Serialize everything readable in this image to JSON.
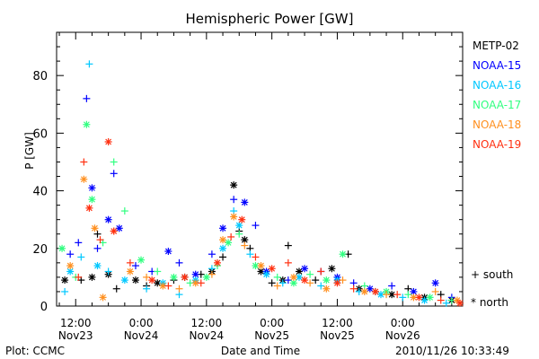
{
  "chart_data": {
    "type": "scatter",
    "title": "Hemispheric Power [GW]",
    "ylabel": "P [GW]",
    "xlabel": "Date and Time",
    "ylim": [
      0,
      95
    ],
    "xlim": [
      "2010-11-23 08:30",
      "2010-11-26 11:00"
    ],
    "yticks": [
      0,
      20,
      40,
      60,
      80
    ],
    "xticks": [
      {
        "time": "2010-11-23 12:00",
        "label": "12:00",
        "sublabel": "Nov23"
      },
      {
        "time": "2010-11-24 00:00",
        "label": "0:00",
        "sublabel": "Nov24"
      },
      {
        "time": "2010-11-24 12:00",
        "label": "12:00",
        "sublabel": "Nov24"
      },
      {
        "time": "2010-11-25 00:00",
        "label": "0:00",
        "sublabel": "Nov25"
      },
      {
        "time": "2010-11-25 12:00",
        "label": "12:00",
        "sublabel": "Nov25"
      },
      {
        "time": "2010-11-26 00:00",
        "label": "0:00",
        "sublabel": "Nov26"
      }
    ],
    "grid": false,
    "legend_position": "right",
    "symbols": {
      "south": "+",
      "north": "*"
    },
    "series": [
      {
        "name": "METP-02",
        "color": "#000000",
        "points": [
          [
            "2010-11-23 10:00",
            9,
            "north"
          ],
          [
            "2010-11-23 13:00",
            9,
            "south"
          ],
          [
            "2010-11-23 15:00",
            10,
            "north"
          ],
          [
            "2010-11-23 16:00",
            25,
            "south"
          ],
          [
            "2010-11-23 18:00",
            11,
            "north"
          ],
          [
            "2010-11-23 19:30",
            6,
            "south"
          ],
          [
            "2010-11-23 23:00",
            9,
            "north"
          ],
          [
            "2010-11-24 01:00",
            7,
            "south"
          ],
          [
            "2010-11-24 03:00",
            8,
            "north"
          ],
          [
            "2010-11-24 06:00",
            9,
            "south"
          ],
          [
            "2010-11-24 08:00",
            10,
            "north"
          ],
          [
            "2010-11-24 11:00",
            11,
            "south"
          ],
          [
            "2010-11-24 13:00",
            12,
            "north"
          ],
          [
            "2010-11-24 15:00",
            17,
            "south"
          ],
          [
            "2010-11-24 17:00",
            42,
            "north"
          ],
          [
            "2010-11-24 18:00",
            26,
            "south"
          ],
          [
            "2010-11-24 19:00",
            23,
            "north"
          ],
          [
            "2010-11-24 20:00",
            20,
            "south"
          ],
          [
            "2010-11-24 22:00",
            12,
            "north"
          ],
          [
            "2010-11-25 00:00",
            8,
            "south"
          ],
          [
            "2010-11-25 02:00",
            9,
            "north"
          ],
          [
            "2010-11-25 03:00",
            21,
            "south"
          ],
          [
            "2010-11-25 05:00",
            12,
            "north"
          ],
          [
            "2010-11-25 08:00",
            9,
            "south"
          ],
          [
            "2010-11-25 11:00",
            13,
            "north"
          ],
          [
            "2010-11-25 14:00",
            18,
            "south"
          ],
          [
            "2010-11-25 16:00",
            6,
            "north"
          ],
          [
            "2010-11-25 19:00",
            5,
            "south"
          ],
          [
            "2010-11-25 22:00",
            4,
            "north"
          ],
          [
            "2010-11-26 01:00",
            6,
            "south"
          ],
          [
            "2010-11-26 04:00",
            3,
            "north"
          ],
          [
            "2010-11-26 07:00",
            4,
            "south"
          ],
          [
            "2010-11-26 09:00",
            2,
            "north"
          ]
        ]
      },
      {
        "name": "NOAA-15",
        "color": "#0000ff",
        "points": [
          [
            "2010-11-23 11:00",
            18,
            "south"
          ],
          [
            "2010-11-23 12:30",
            22,
            "south"
          ],
          [
            "2010-11-23 14:00",
            72,
            "south"
          ],
          [
            "2010-11-23 15:00",
            41,
            "north"
          ],
          [
            "2010-11-23 16:00",
            20,
            "south"
          ],
          [
            "2010-11-23 18:00",
            30,
            "north"
          ],
          [
            "2010-11-23 19:00",
            46,
            "south"
          ],
          [
            "2010-11-23 20:00",
            27,
            "north"
          ],
          [
            "2010-11-23 23:00",
            14,
            "south"
          ],
          [
            "2010-11-24 02:00",
            12,
            "south"
          ],
          [
            "2010-11-24 05:00",
            19,
            "north"
          ],
          [
            "2010-11-24 07:00",
            15,
            "south"
          ],
          [
            "2010-11-24 10:00",
            11,
            "north"
          ],
          [
            "2010-11-24 13:00",
            18,
            "south"
          ],
          [
            "2010-11-24 15:00",
            27,
            "north"
          ],
          [
            "2010-11-24 17:00",
            37,
            "south"
          ],
          [
            "2010-11-24 19:00",
            36,
            "north"
          ],
          [
            "2010-11-24 21:00",
            28,
            "south"
          ],
          [
            "2010-11-24 23:00",
            12,
            "north"
          ],
          [
            "2010-11-25 03:00",
            9,
            "south"
          ],
          [
            "2010-11-25 06:00",
            13,
            "north"
          ],
          [
            "2010-11-25 09:00",
            12,
            "south"
          ],
          [
            "2010-11-25 12:00",
            10,
            "north"
          ],
          [
            "2010-11-25 15:00",
            8,
            "south"
          ],
          [
            "2010-11-25 18:00",
            6,
            "north"
          ],
          [
            "2010-11-25 22:00",
            7,
            "south"
          ],
          [
            "2010-11-26 02:00",
            5,
            "north"
          ],
          [
            "2010-11-26 06:00",
            8,
            "north"
          ],
          [
            "2010-11-26 09:00",
            3,
            "south"
          ]
        ]
      },
      {
        "name": "NOAA-16",
        "color": "#00c8ff",
        "points": [
          [
            "2010-11-23 10:00",
            5,
            "south"
          ],
          [
            "2010-11-23 11:00",
            12,
            "north"
          ],
          [
            "2010-11-23 13:00",
            17,
            "south"
          ],
          [
            "2010-11-23 14:30",
            84,
            "south"
          ],
          [
            "2010-11-23 16:00",
            14,
            "north"
          ],
          [
            "2010-11-23 18:00",
            12,
            "south"
          ],
          [
            "2010-11-23 21:00",
            9,
            "north"
          ],
          [
            "2010-11-24 01:00",
            6,
            "south"
          ],
          [
            "2010-11-24 04:00",
            8,
            "north"
          ],
          [
            "2010-11-24 07:00",
            4,
            "south"
          ],
          [
            "2010-11-24 10:00",
            9,
            "north"
          ],
          [
            "2010-11-24 13:00",
            13,
            "south"
          ],
          [
            "2010-11-24 15:00",
            20,
            "north"
          ],
          [
            "2010-11-24 17:00",
            33,
            "south"
          ],
          [
            "2010-11-24 18:00",
            28,
            "north"
          ],
          [
            "2010-11-24 20:00",
            18,
            "south"
          ],
          [
            "2010-11-24 23:00",
            11,
            "north"
          ],
          [
            "2010-11-25 02:00",
            8,
            "south"
          ],
          [
            "2010-11-25 05:00",
            10,
            "north"
          ],
          [
            "2010-11-25 09:00",
            7,
            "south"
          ],
          [
            "2010-11-25 12:00",
            9,
            "north"
          ],
          [
            "2010-11-25 16:00",
            5,
            "south"
          ],
          [
            "2010-11-25 20:00",
            4,
            "north"
          ],
          [
            "2010-11-26 00:00",
            3,
            "south"
          ],
          [
            "2010-11-26 04:00",
            2,
            "north"
          ],
          [
            "2010-11-26 08:00",
            1,
            "south"
          ]
        ]
      },
      {
        "name": "NOAA-17",
        "color": "#30ff80",
        "points": [
          [
            "2010-11-23 09:30",
            20,
            "north"
          ],
          [
            "2010-11-23 12:00",
            10,
            "south"
          ],
          [
            "2010-11-23 14:00",
            63,
            "north"
          ],
          [
            "2010-11-23 15:00",
            37,
            "north"
          ],
          [
            "2010-11-23 17:00",
            22,
            "south"
          ],
          [
            "2010-11-23 19:00",
            50,
            "south"
          ],
          [
            "2010-11-23 21:00",
            33,
            "south"
          ],
          [
            "2010-11-24 00:00",
            16,
            "north"
          ],
          [
            "2010-11-24 03:00",
            12,
            "south"
          ],
          [
            "2010-11-24 06:00",
            10,
            "north"
          ],
          [
            "2010-11-24 09:00",
            8,
            "south"
          ],
          [
            "2010-11-24 12:00",
            10,
            "north"
          ],
          [
            "2010-11-24 14:00",
            14,
            "south"
          ],
          [
            "2010-11-24 16:00",
            22,
            "north"
          ],
          [
            "2010-11-24 18:00",
            25,
            "south"
          ],
          [
            "2010-11-24 21:00",
            14,
            "north"
          ],
          [
            "2010-11-25 01:00",
            10,
            "south"
          ],
          [
            "2010-11-25 04:00",
            8,
            "north"
          ],
          [
            "2010-11-25 07:00",
            11,
            "south"
          ],
          [
            "2010-11-25 10:00",
            9,
            "north"
          ],
          [
            "2010-11-25 13:00",
            18,
            "north"
          ],
          [
            "2010-11-25 17:00",
            7,
            "south"
          ],
          [
            "2010-11-25 21:00",
            5,
            "north"
          ],
          [
            "2010-11-26 01:00",
            4,
            "south"
          ],
          [
            "2010-11-26 05:00",
            3,
            "north"
          ],
          [
            "2010-11-26 09:00",
            2,
            "south"
          ]
        ]
      },
      {
        "name": "NOAA-18",
        "color": "#ff9020",
        "points": [
          [
            "2010-11-23 11:00",
            14,
            "north"
          ],
          [
            "2010-11-23 13:30",
            44,
            "north"
          ],
          [
            "2010-11-23 15:30",
            27,
            "north"
          ],
          [
            "2010-11-23 17:00",
            3,
            "north"
          ],
          [
            "2010-11-23 19:00",
            26,
            "south"
          ],
          [
            "2010-11-23 22:00",
            12,
            "north"
          ],
          [
            "2010-11-24 01:00",
            10,
            "south"
          ],
          [
            "2010-11-24 04:00",
            7,
            "north"
          ],
          [
            "2010-11-24 07:00",
            6,
            "south"
          ],
          [
            "2010-11-24 10:00",
            8,
            "north"
          ],
          [
            "2010-11-24 13:00",
            11,
            "south"
          ],
          [
            "2010-11-24 15:00",
            23,
            "north"
          ],
          [
            "2010-11-24 17:00",
            31,
            "north"
          ],
          [
            "2010-11-24 19:00",
            21,
            "south"
          ],
          [
            "2010-11-24 22:00",
            14,
            "north"
          ],
          [
            "2010-11-25 01:00",
            7,
            "south"
          ],
          [
            "2010-11-25 04:00",
            10,
            "north"
          ],
          [
            "2010-11-25 07:00",
            8,
            "south"
          ],
          [
            "2010-11-25 10:00",
            6,
            "north"
          ],
          [
            "2010-11-25 13:00",
            9,
            "south"
          ],
          [
            "2010-11-25 17:00",
            5,
            "north"
          ],
          [
            "2010-11-25 21:00",
            4,
            "south"
          ],
          [
            "2010-11-26 02:00",
            3,
            "north"
          ],
          [
            "2010-11-26 06:00",
            5,
            "south"
          ],
          [
            "2010-11-26 10:00",
            2,
            "north"
          ]
        ]
      },
      {
        "name": "NOAA-19",
        "color": "#ff3010",
        "points": [
          [
            "2010-11-23 12:30",
            10,
            "south"
          ],
          [
            "2010-11-23 13:30",
            50,
            "south"
          ],
          [
            "2010-11-23 14:30",
            34,
            "north"
          ],
          [
            "2010-11-23 16:30",
            23,
            "south"
          ],
          [
            "2010-11-23 18:00",
            57,
            "north"
          ],
          [
            "2010-11-23 19:00",
            26,
            "north"
          ],
          [
            "2010-11-23 22:00",
            15,
            "south"
          ],
          [
            "2010-11-24 02:00",
            9,
            "north"
          ],
          [
            "2010-11-24 05:00",
            7,
            "south"
          ],
          [
            "2010-11-24 08:00",
            10,
            "north"
          ],
          [
            "2010-11-24 11:00",
            8,
            "south"
          ],
          [
            "2010-11-24 14:00",
            15,
            "north"
          ],
          [
            "2010-11-24 16:30",
            24,
            "south"
          ],
          [
            "2010-11-24 18:30",
            30,
            "north"
          ],
          [
            "2010-11-24 21:00",
            17,
            "south"
          ],
          [
            "2010-11-25 00:00",
            13,
            "north"
          ],
          [
            "2010-11-25 03:00",
            15,
            "south"
          ],
          [
            "2010-11-25 06:00",
            9,
            "north"
          ],
          [
            "2010-11-25 09:00",
            12,
            "south"
          ],
          [
            "2010-11-25 12:00",
            8,
            "north"
          ],
          [
            "2010-11-25 15:00",
            6,
            "south"
          ],
          [
            "2010-11-25 19:00",
            5,
            "north"
          ],
          [
            "2010-11-25 23:00",
            4,
            "south"
          ],
          [
            "2010-11-26 03:00",
            3,
            "north"
          ],
          [
            "2010-11-26 07:00",
            2,
            "south"
          ],
          [
            "2010-11-26 10:30",
            1,
            "north"
          ]
        ]
      }
    ]
  },
  "footer": {
    "plot_credit": "Plot: CCMC",
    "timestamp": "2010/11/26 10:33:49"
  },
  "legend": {
    "south_label": "+ south",
    "north_label": "* north"
  }
}
